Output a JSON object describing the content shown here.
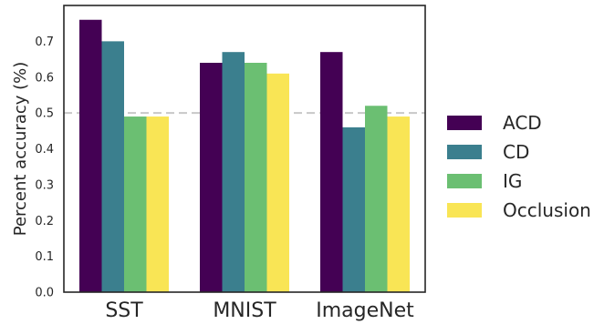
{
  "chart_data": {
    "type": "bar",
    "title": "",
    "xlabel": "",
    "ylabel": "Percent accuracy (%)",
    "categories": [
      "SST",
      "MNIST",
      "ImageNet"
    ],
    "ylim": [
      0,
      0.8
    ],
    "yticks": [
      0.0,
      0.1,
      0.2,
      0.3,
      0.4,
      0.5,
      0.6,
      0.7
    ],
    "reference_line": {
      "y": 0.5,
      "style": "dashed",
      "color": "#c8c8c8"
    },
    "grid": false,
    "legend_position": "right",
    "series": [
      {
        "name": "ACD",
        "color": "#440154",
        "values": [
          0.76,
          0.64,
          0.67
        ]
      },
      {
        "name": "CD",
        "color": "#3b7f8e",
        "values": [
          0.7,
          0.67,
          0.46
        ]
      },
      {
        "name": "IG",
        "color": "#6bbf72",
        "values": [
          0.49,
          0.64,
          0.52
        ]
      },
      {
        "name": "Occlusion",
        "color": "#f9e555",
        "values": [
          0.49,
          0.61,
          0.49
        ]
      }
    ]
  }
}
